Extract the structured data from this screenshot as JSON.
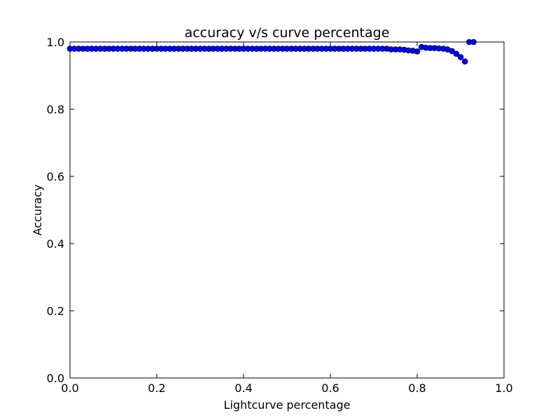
{
  "chart_data": {
    "type": "scatter",
    "title": "accuracy v/s curve percentage",
    "xlabel": "Lightcurve percentage",
    "ylabel": "Accuracy",
    "xlim": [
      0.0,
      1.0
    ],
    "ylim": [
      0.0,
      1.0
    ],
    "xticks": [
      "0.0",
      "0.2",
      "0.4",
      "0.6",
      "0.8",
      "1.0"
    ],
    "yticks": [
      "0.0",
      "0.2",
      "0.4",
      "0.6",
      "0.8",
      "1.0"
    ],
    "grid": false,
    "marker_color": "#0000ff",
    "marker_edge_color": "#000000",
    "series": [
      {
        "x": [
          0.0,
          0.01,
          0.02,
          0.03,
          0.04,
          0.05,
          0.06,
          0.07,
          0.08,
          0.09,
          0.1,
          0.11,
          0.12,
          0.13,
          0.14,
          0.15,
          0.16,
          0.17,
          0.18,
          0.19,
          0.2,
          0.21,
          0.22,
          0.23,
          0.24,
          0.25,
          0.26,
          0.27,
          0.28,
          0.29,
          0.3,
          0.31,
          0.32,
          0.33,
          0.34,
          0.35,
          0.36,
          0.37,
          0.38,
          0.39,
          0.4,
          0.41,
          0.42,
          0.43,
          0.44,
          0.45,
          0.46,
          0.47,
          0.48,
          0.49,
          0.5,
          0.51,
          0.52,
          0.53,
          0.54,
          0.55,
          0.56,
          0.57,
          0.58,
          0.59,
          0.6,
          0.61,
          0.62,
          0.63,
          0.64,
          0.65,
          0.66,
          0.67,
          0.68,
          0.69,
          0.7,
          0.71,
          0.72,
          0.73,
          0.74,
          0.75,
          0.76,
          0.77,
          0.78,
          0.79,
          0.8,
          0.81,
          0.82,
          0.83,
          0.84,
          0.85,
          0.86,
          0.87,
          0.88,
          0.89,
          0.9,
          0.91,
          0.92,
          0.93
        ],
        "y": [
          0.98,
          0.98,
          0.98,
          0.98,
          0.98,
          0.98,
          0.98,
          0.98,
          0.98,
          0.98,
          0.98,
          0.98,
          0.98,
          0.98,
          0.98,
          0.98,
          0.98,
          0.98,
          0.98,
          0.98,
          0.98,
          0.98,
          0.98,
          0.98,
          0.98,
          0.98,
          0.98,
          0.98,
          0.98,
          0.98,
          0.98,
          0.98,
          0.98,
          0.98,
          0.98,
          0.98,
          0.98,
          0.98,
          0.98,
          0.98,
          0.98,
          0.98,
          0.98,
          0.98,
          0.98,
          0.98,
          0.98,
          0.98,
          0.98,
          0.98,
          0.98,
          0.98,
          0.98,
          0.98,
          0.98,
          0.98,
          0.98,
          0.98,
          0.98,
          0.98,
          0.98,
          0.98,
          0.98,
          0.98,
          0.98,
          0.98,
          0.98,
          0.98,
          0.98,
          0.98,
          0.98,
          0.98,
          0.98,
          0.98,
          0.978,
          0.978,
          0.978,
          0.977,
          0.975,
          0.974,
          0.972,
          0.985,
          0.983,
          0.982,
          0.982,
          0.981,
          0.98,
          0.978,
          0.973,
          0.965,
          0.955,
          0.942,
          1.0,
          1.0
        ]
      }
    ]
  }
}
